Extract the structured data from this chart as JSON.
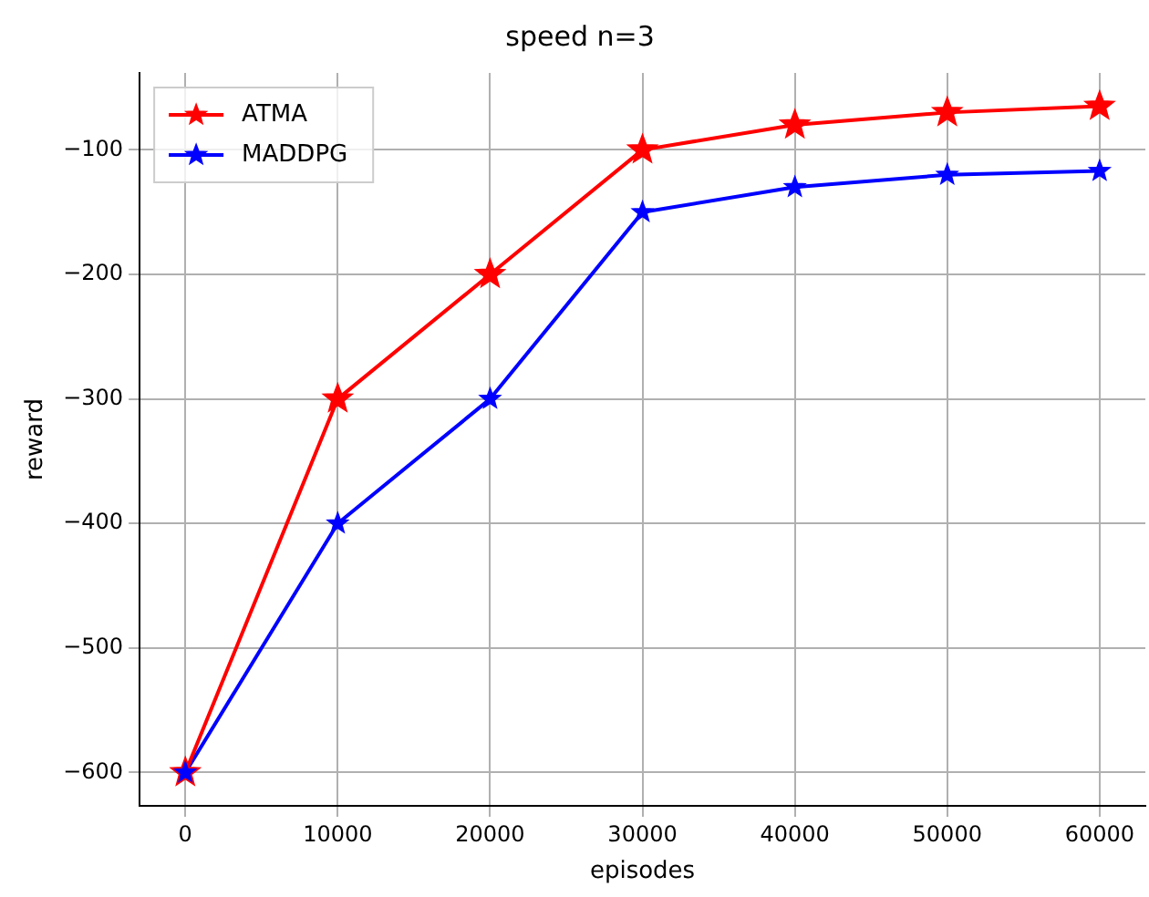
{
  "chart_data": {
    "type": "line",
    "title": "speed n=3",
    "xlabel": "episodes",
    "ylabel": "reward",
    "x": [
      0,
      10000,
      20000,
      30000,
      40000,
      50000,
      60000
    ],
    "series": [
      {
        "name": "ATMA",
        "color": "#ff0000",
        "values": [
          -600,
          -300,
          -200,
          -100,
          -80,
          -70,
          -65
        ]
      },
      {
        "name": "MADDPG",
        "color": "#0000ff",
        "values": [
          -600,
          -400,
          -300,
          -150,
          -130,
          -120,
          -117
        ]
      }
    ],
    "xlim": [
      -3000,
      63000
    ],
    "xticks": [
      0,
      10000,
      20000,
      30000,
      40000,
      50000,
      60000
    ],
    "ylim": [
      -626.75,
      -38.25
    ],
    "yticks": [
      -600,
      -500,
      -400,
      -300,
      -200,
      -100
    ],
    "grid": true,
    "legend": "top left",
    "marker": "star",
    "line_style": "solid"
  }
}
